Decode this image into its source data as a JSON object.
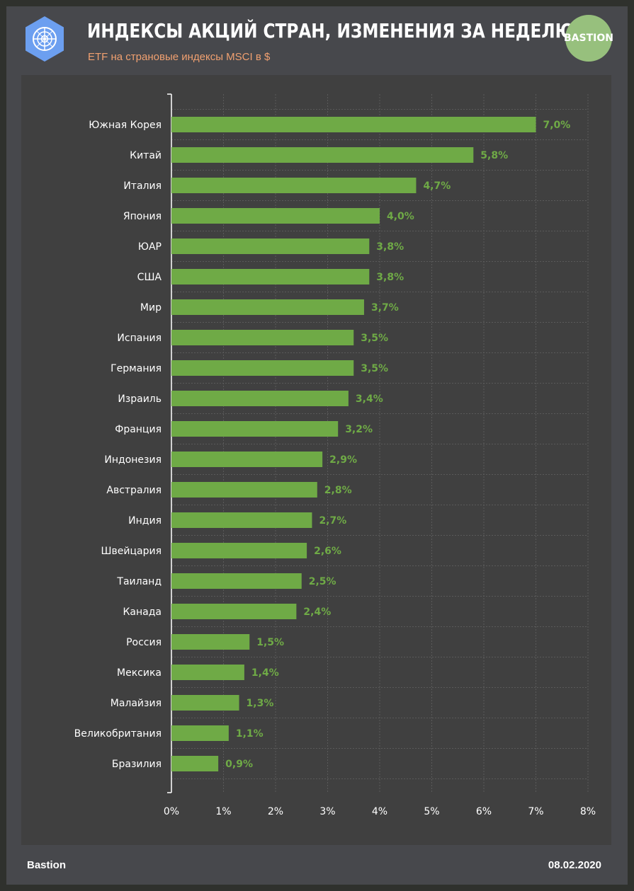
{
  "header": {
    "title": "ИНДЕКСЫ АКЦИЙ СТРАН, ИЗМЕНЕНИЯ ЗА НЕДЕЛЮ",
    "subtitle": "ETF на страновые индексы MSCI в $",
    "brand": "BASTION"
  },
  "footer": {
    "left": "Bastion",
    "right": "08.02.2020"
  },
  "colors": {
    "bar": "#6faa46",
    "value_label": "#6faa46",
    "grid": "#5a5a5a",
    "axis": "#ffffff"
  },
  "chart_data": {
    "type": "bar",
    "orientation": "horizontal",
    "categories": [
      "Южная Корея",
      "Китай",
      "Италия",
      "Япония",
      "ЮАР",
      "США",
      "Мир",
      "Испания",
      "Германия",
      "Израиль",
      "Франция",
      "Индонезия",
      "Австралия",
      "Индия",
      "Швейцария",
      "Таиланд",
      "Канада",
      "Россия",
      "Мексика",
      "Малайзия",
      "Великобритания",
      "Бразилия"
    ],
    "values": [
      7.0,
      5.8,
      4.7,
      4.0,
      3.8,
      3.8,
      3.7,
      3.5,
      3.5,
      3.4,
      3.2,
      2.9,
      2.8,
      2.7,
      2.6,
      2.5,
      2.4,
      1.5,
      1.4,
      1.3,
      1.1,
      0.9
    ],
    "value_labels": [
      "7,0%",
      "5,8%",
      "4,7%",
      "4,0%",
      "3,8%",
      "3,8%",
      "3,7%",
      "3,5%",
      "3,5%",
      "3,4%",
      "3,2%",
      "2,9%",
      "2,8%",
      "2,7%",
      "2,6%",
      "2,5%",
      "2,4%",
      "1,5%",
      "1,4%",
      "1,3%",
      "1,1%",
      "0,9%"
    ],
    "xlim": [
      0,
      8
    ],
    "xticks": [
      0,
      1,
      2,
      3,
      4,
      5,
      6,
      7,
      8
    ],
    "xtick_labels": [
      "0%",
      "1%",
      "2%",
      "3%",
      "4%",
      "5%",
      "6%",
      "7%",
      "8%"
    ],
    "xlabel": "",
    "ylabel": "",
    "grid": true,
    "title": ""
  }
}
